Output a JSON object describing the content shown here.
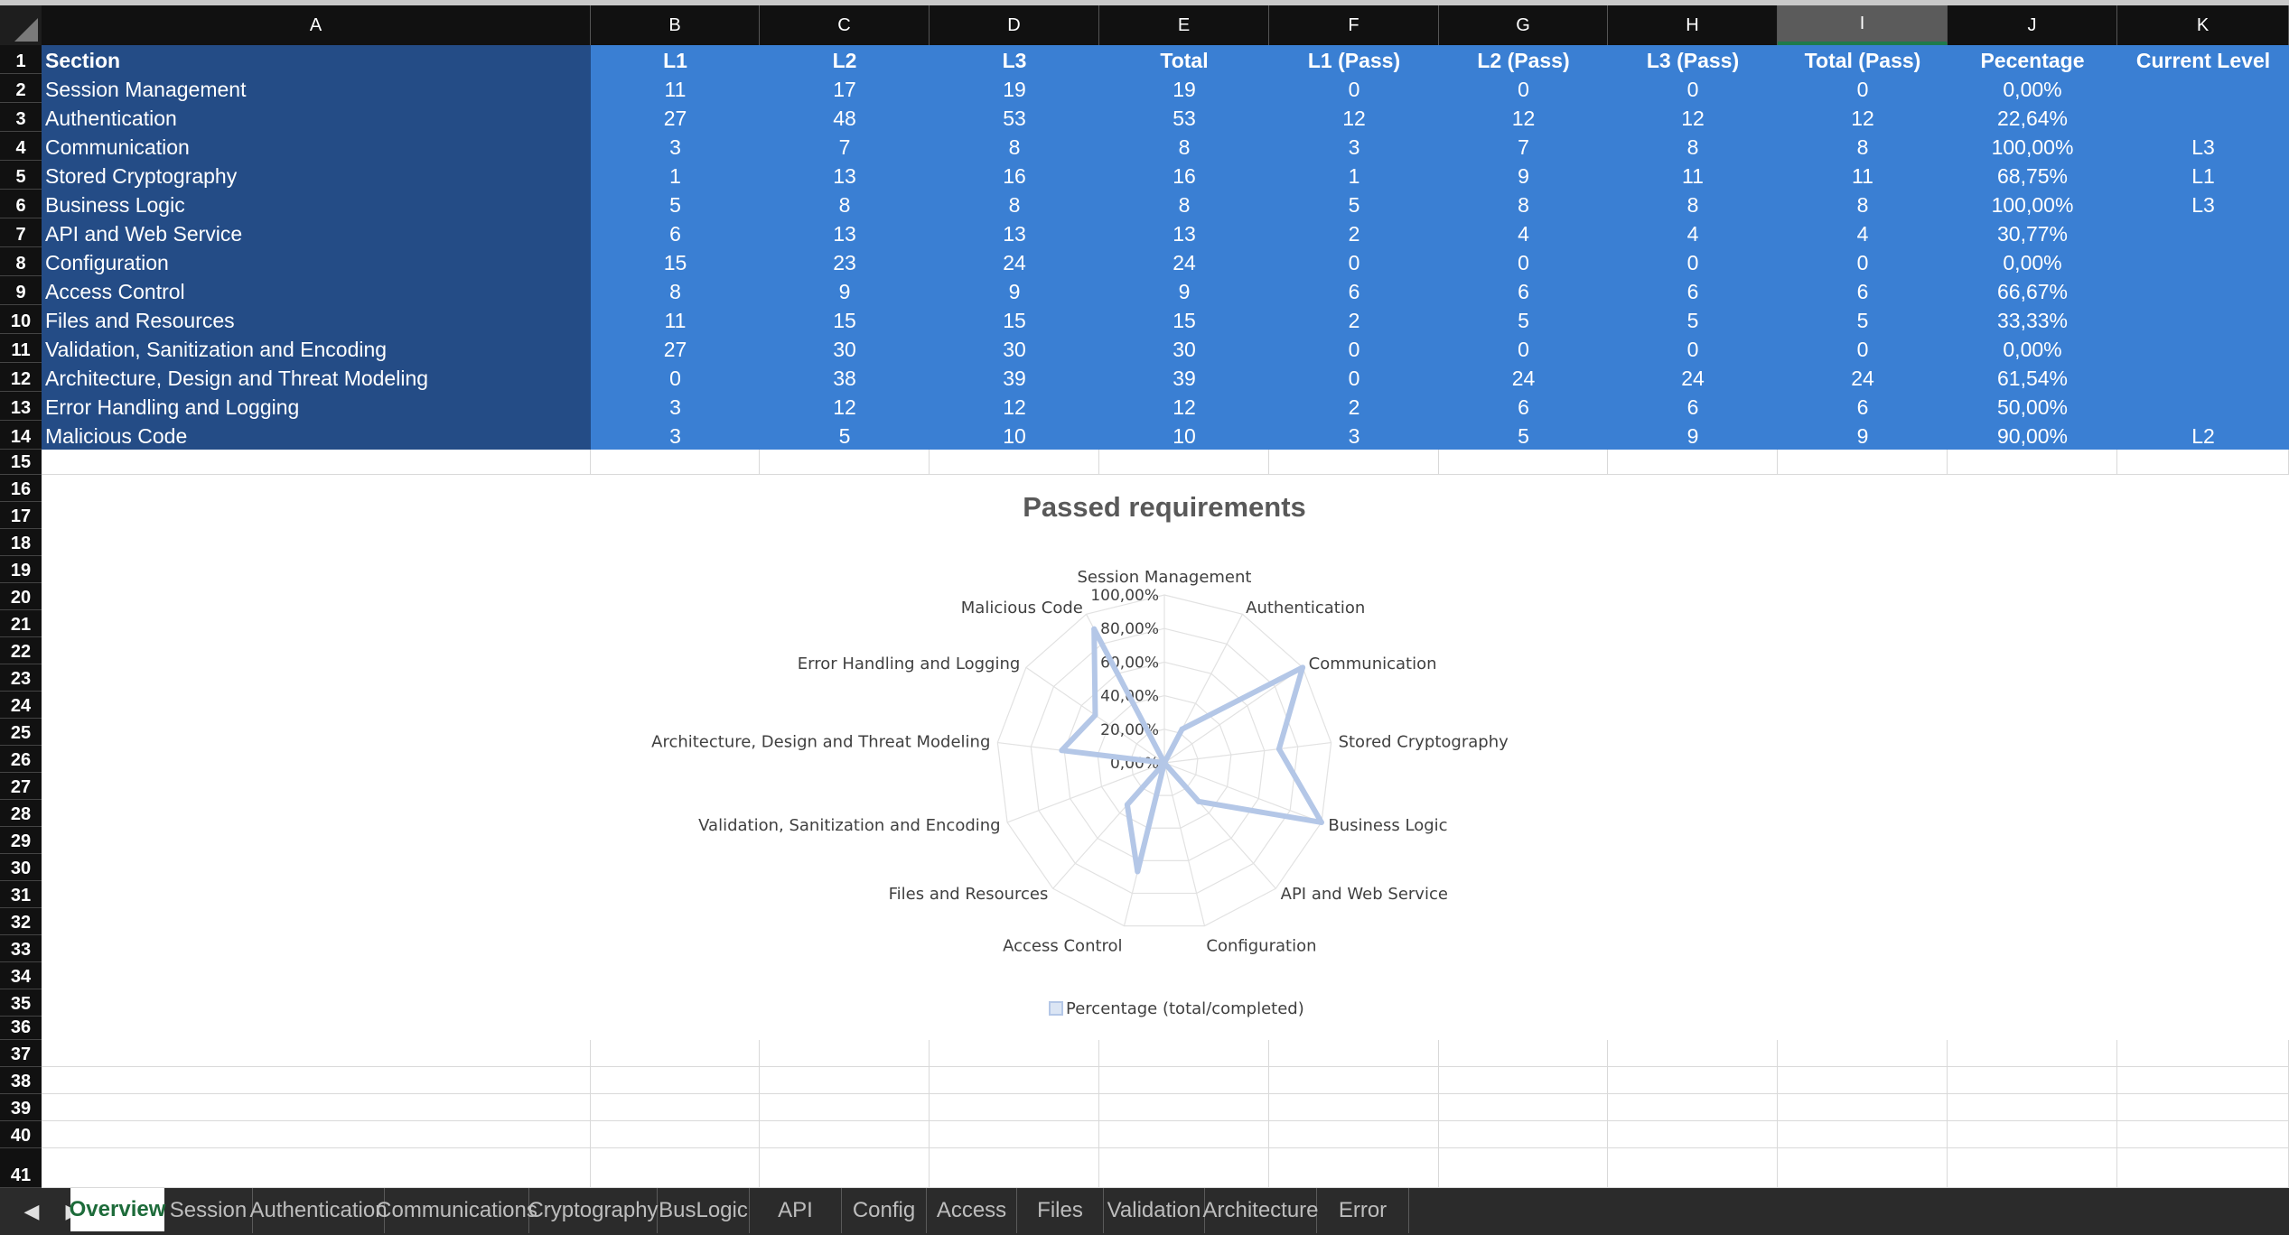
{
  "columns": [
    "A",
    "B",
    "C",
    "D",
    "E",
    "F",
    "G",
    "H",
    "I",
    "J",
    "K"
  ],
  "selected_column": "I",
  "row_numbers": [
    1,
    2,
    3,
    4,
    5,
    6,
    7,
    8,
    9,
    10,
    11,
    12,
    13,
    14,
    15,
    16,
    17,
    18,
    19,
    20,
    21,
    22,
    23,
    24,
    25,
    26,
    27,
    28,
    29,
    30,
    31,
    32,
    33,
    34,
    35,
    36,
    37,
    38,
    39,
    40,
    41
  ],
  "table": {
    "headers": [
      "Section",
      "L1",
      "L2",
      "L3",
      "Total",
      "L1 (Pass)",
      "L2 (Pass)",
      "L3 (Pass)",
      "Total (Pass)",
      "Pecentage",
      "Current Level"
    ],
    "rows": [
      [
        "Session Management",
        "11",
        "17",
        "19",
        "19",
        "0",
        "0",
        "0",
        "0",
        "0,00%",
        ""
      ],
      [
        "Authentication",
        "27",
        "48",
        "53",
        "53",
        "12",
        "12",
        "12",
        "12",
        "22,64%",
        ""
      ],
      [
        "Communication",
        "3",
        "7",
        "8",
        "8",
        "3",
        "7",
        "8",
        "8",
        "100,00%",
        "L3"
      ],
      [
        "Stored Cryptography",
        "1",
        "13",
        "16",
        "16",
        "1",
        "9",
        "11",
        "11",
        "68,75%",
        "L1"
      ],
      [
        "Business Logic",
        "5",
        "8",
        "8",
        "8",
        "5",
        "8",
        "8",
        "8",
        "100,00%",
        "L3"
      ],
      [
        "API and Web Service",
        "6",
        "13",
        "13",
        "13",
        "2",
        "4",
        "4",
        "4",
        "30,77%",
        ""
      ],
      [
        "Configuration",
        "15",
        "23",
        "24",
        "24",
        "0",
        "0",
        "0",
        "0",
        "0,00%",
        ""
      ],
      [
        "Access Control",
        "8",
        "9",
        "9",
        "9",
        "6",
        "6",
        "6",
        "6",
        "66,67%",
        ""
      ],
      [
        "Files and Resources",
        "11",
        "15",
        "15",
        "15",
        "2",
        "5",
        "5",
        "5",
        "33,33%",
        ""
      ],
      [
        "Validation, Sanitization and Encoding",
        "27",
        "30",
        "30",
        "30",
        "0",
        "0",
        "0",
        "0",
        "0,00%",
        ""
      ],
      [
        "Architecture, Design and Threat Modeling",
        "0",
        "38",
        "39",
        "39",
        "0",
        "24",
        "24",
        "24",
        "61,54%",
        ""
      ],
      [
        "Error Handling and Logging",
        "3",
        "12",
        "12",
        "12",
        "2",
        "6",
        "6",
        "6",
        "50,00%",
        ""
      ],
      [
        "Malicious Code",
        "3",
        "5",
        "10",
        "10",
        "3",
        "5",
        "9",
        "9",
        "90,00%",
        "L2"
      ]
    ]
  },
  "chart_data": {
    "type": "radar",
    "title": "Passed requirements",
    "categories": [
      "Session Management",
      "Authentication",
      "Communication",
      "Stored Cryptography",
      "Business Logic",
      "API and Web Service",
      "Configuration",
      "Access Control",
      "Files and Resources",
      "Validation, Sanitization and Encoding",
      "Architecture, Design and Threat Modeling",
      "Error Handling and Logging",
      "Malicious Code"
    ],
    "series": [
      {
        "name": "Percentage (total/completed)",
        "values": [
          0,
          22.64,
          100,
          68.75,
          100,
          30.77,
          0,
          66.67,
          33.33,
          0,
          61.54,
          50,
          90
        ]
      }
    ],
    "ticks": [
      "0,00%",
      "20,00%",
      "40,00%",
      "60,00%",
      "80,00%",
      "100,00%"
    ],
    "range": [
      0,
      100
    ],
    "series_color": "#b4c7e7",
    "legend_position": "bottom",
    "grid": true
  },
  "tabs": [
    "Overview",
    "Session",
    "Authentication",
    "Communications",
    "Cryptography",
    "BusLogic",
    "API",
    "Config",
    "Access",
    "Files",
    "Validation",
    "Architecture",
    "Error"
  ],
  "active_tab": "Overview",
  "nav_icons": [
    "chevron-left-icon",
    "chevron-right-icon"
  ]
}
